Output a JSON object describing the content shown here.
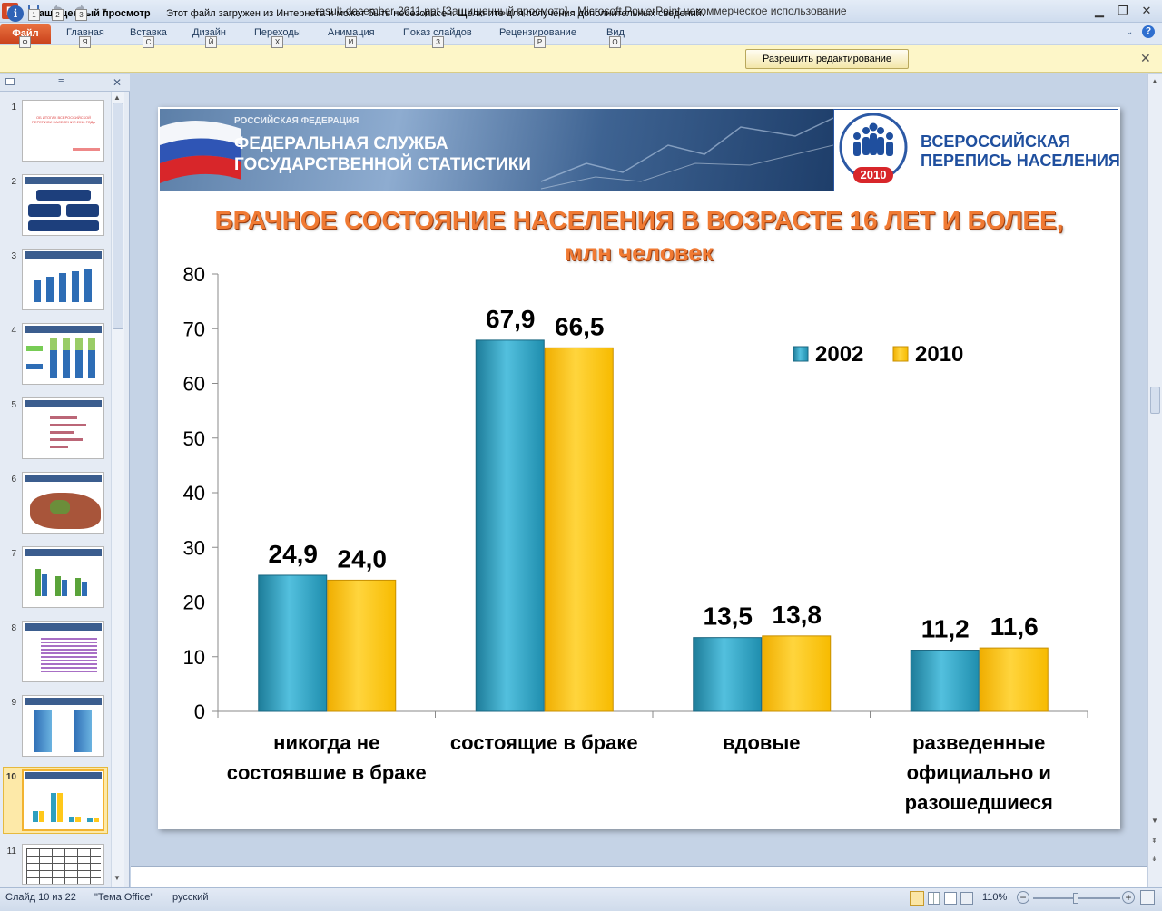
{
  "window": {
    "title": "result-december-2011.ppt [Защищенный просмотр]  -  Microsoft PowerPoint некоммерческое использование",
    "app_icon": "P",
    "quick_access": [
      {
        "icon": "save-icon",
        "key": "1"
      },
      {
        "icon": "undo-icon",
        "key": "2"
      },
      {
        "icon": "redo-icon",
        "key": "3"
      }
    ]
  },
  "ribbon": {
    "file_tab": {
      "label": "Файл",
      "key": "Ф"
    },
    "tabs": [
      {
        "label": "Главная",
        "key": "Я"
      },
      {
        "label": "Вставка",
        "key": "С"
      },
      {
        "label": "Дизайн",
        "key": "Й"
      },
      {
        "label": "Переходы",
        "key": "Х"
      },
      {
        "label": "Анимация",
        "key": "И"
      },
      {
        "label": "Показ слайдов",
        "key": "З"
      },
      {
        "label": "Рецензирование",
        "key": "Р"
      },
      {
        "label": "Вид",
        "key": "О"
      }
    ]
  },
  "message_bar": {
    "title": "Защищенный просмотр",
    "text": "Этот файл загружен из Интернета и может быть небезопасен. Щелкните для получения дополнительных сведений.",
    "button": "Разрешить редактирование"
  },
  "thumbnails": {
    "items": [
      "1",
      "2",
      "3",
      "4",
      "5",
      "6",
      "7",
      "8",
      "9",
      "10",
      "11"
    ],
    "selected": "10",
    "slide1_text": "ОБ ИТОГАХ ВСЕРОССИЙСКОЙ ПЕРЕПИСИ НАСЕЛЕНИЯ 2010 ГОДА"
  },
  "slide": {
    "org_small": "РОССИЙСКАЯ ФЕДЕРАЦИЯ",
    "org_line1": "ФЕДЕРАЛЬНАЯ СЛУЖБА",
    "org_line2": "ГОСУДАРСТВЕННОЙ СТАТИСТИКИ",
    "logo_line1": "ВСЕРОССИЙСКАЯ",
    "logo_line2": "ПЕРЕПИСЬ НАСЕЛЕНИЯ",
    "logo_year": "2010",
    "title": "БРАЧНОЕ СОСТОЯНИЕ НАСЕЛЕНИЯ В ВОЗРАСТЕ 16 ЛЕТ И БОЛЕЕ,",
    "subtitle": "млн человек"
  },
  "chart_data": {
    "type": "bar",
    "categories": [
      "никогда не состоявшие в браке",
      "состоящие в браке",
      "вдовые",
      "разведенные официально и разошедшиеся"
    ],
    "category_lines": [
      [
        "никогда не",
        "состоявшие в браке"
      ],
      [
        "состоящие в браке"
      ],
      [
        "вдовые"
      ],
      [
        "разведенные",
        "официально и",
        "разошедшиеся"
      ]
    ],
    "series": [
      {
        "name": "2002",
        "color": "#2e9fbf",
        "values": [
          24.9,
          67.9,
          13.5,
          11.2
        ],
        "labels": [
          "24,9",
          "67,9",
          "13,5",
          "11,2"
        ]
      },
      {
        "name": "2010",
        "color": "#ffc81a",
        "values": [
          24.0,
          66.5,
          13.8,
          11.6
        ],
        "labels": [
          "24,0",
          "66,5",
          "13,8",
          "11,6"
        ]
      }
    ],
    "y_ticks": [
      "0",
      "10",
      "20",
      "30",
      "40",
      "50",
      "60",
      "70",
      "80"
    ],
    "ylim": [
      0,
      80
    ],
    "legend_position": "top-right",
    "grid": false
  },
  "status_bar": {
    "slide_info": "Слайд 10 из 22",
    "theme": "\"Тема Office\"",
    "language": "русский",
    "zoom": "110%"
  }
}
